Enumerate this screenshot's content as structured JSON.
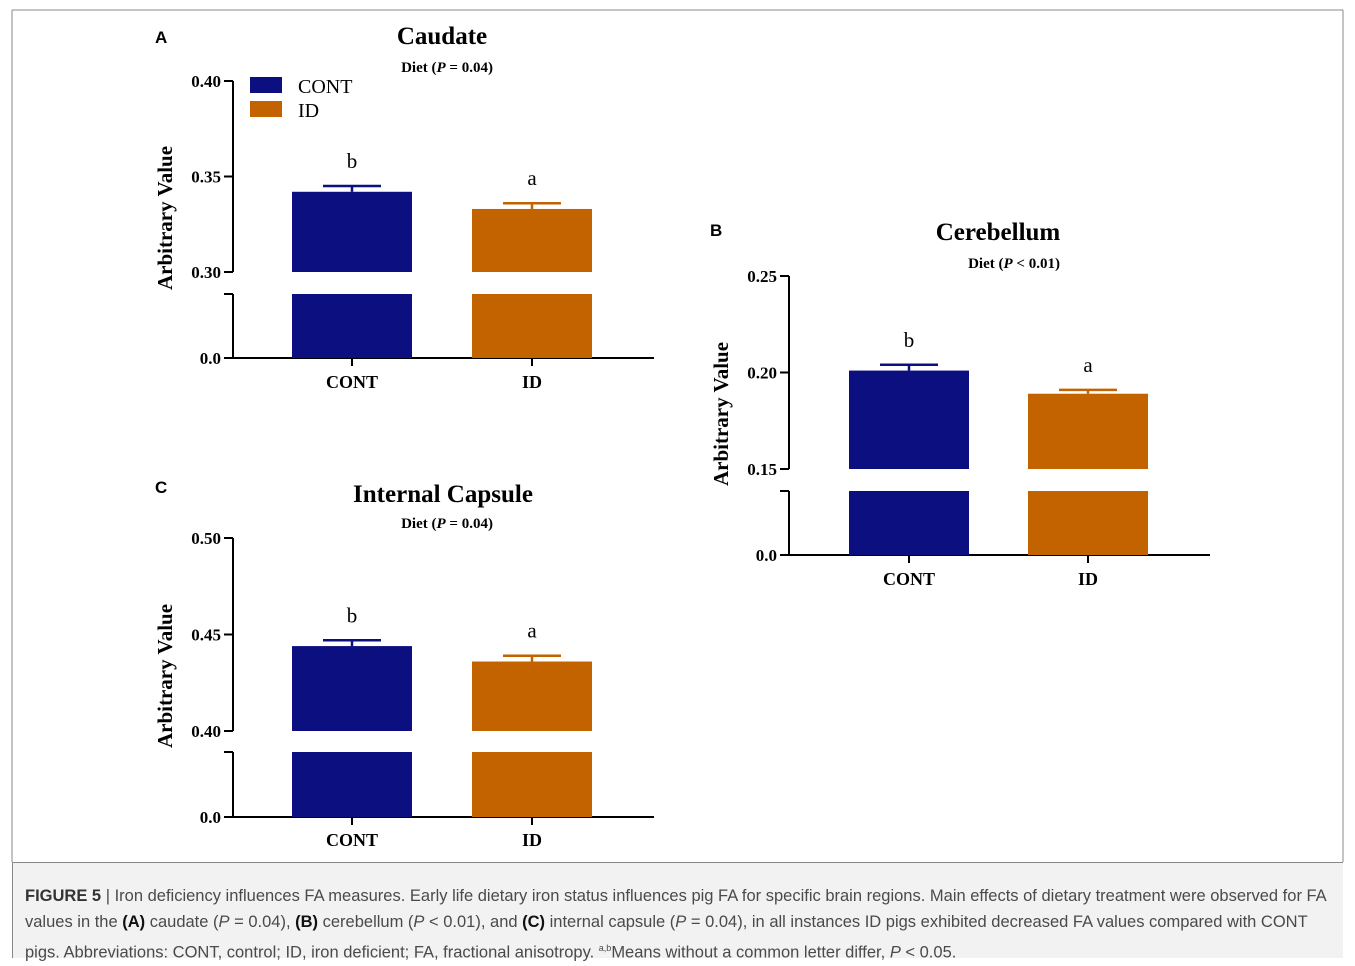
{
  "colors": {
    "CONT": "#0b0f80",
    "ID": "#c26300",
    "axis": "#000000"
  },
  "chart_data": [
    {
      "type": "bar",
      "panel": "A",
      "title": "Caudate",
      "subtitle_prefix": "Diet (",
      "subtitle_p": "P",
      "subtitle_suffix": " = 0.04)",
      "ylabel": "Arbitrary Value",
      "categories": [
        "CONT",
        "ID"
      ],
      "values": [
        0.342,
        0.333
      ],
      "errors": [
        0.003,
        0.003
      ],
      "letters": [
        "b",
        "a"
      ],
      "ylim": [
        0.3,
        0.4
      ],
      "yticks": [
        "0.40",
        "0.35",
        "0.30",
        "0.0"
      ],
      "axis_break": true,
      "legend": [
        "CONT",
        "ID"
      ]
    },
    {
      "type": "bar",
      "panel": "B",
      "title": "Cerebellum",
      "subtitle_prefix": "Diet (",
      "subtitle_p": "P",
      "subtitle_suffix": " < 0.01)",
      "ylabel": "Arbitrary Value",
      "categories": [
        "CONT",
        "ID"
      ],
      "values": [
        0.201,
        0.189
      ],
      "errors": [
        0.003,
        0.002
      ],
      "letters": [
        "b",
        "a"
      ],
      "ylim": [
        0.15,
        0.25
      ],
      "yticks": [
        "0.25",
        "0.20",
        "0.15",
        "0.0"
      ],
      "axis_break": true
    },
    {
      "type": "bar",
      "panel": "C",
      "title": "Internal Capsule",
      "subtitle_prefix": "Diet (",
      "subtitle_p": "P",
      "subtitle_suffix": " = 0.04)",
      "ylabel": "Arbitrary Value",
      "categories": [
        "CONT",
        "ID"
      ],
      "values": [
        0.444,
        0.436
      ],
      "errors": [
        0.003,
        0.003
      ],
      "letters": [
        "b",
        "a"
      ],
      "ylim": [
        0.4,
        0.5
      ],
      "yticks": [
        "0.50",
        "0.45",
        "0.40",
        "0.0"
      ],
      "axis_break": true
    }
  ],
  "caption": {
    "label": "FIGURE 5",
    "sep": " | ",
    "t1": "Iron deficiency influences FA measures. Early life dietary iron status influences pig FA for specific brain regions. Main effects of dietary treatment were observed for FA values in the ",
    "a": "(A)",
    "t2": " caudate (",
    "p1": "P",
    "t3": " = 0.04), ",
    "b": "(B)",
    "t4": " cerebellum (",
    "p2": "P",
    "t5": " < 0.01), and ",
    "c": "(C)",
    "t6": " internal capsule (",
    "p3": "P",
    "t7": " = 0.04), in all instances ID pigs exhibited decreased FA values compared with CONT pigs. Abbreviations: CONT, control; ID, iron deficient; FA, fractional anisotropy. ",
    "sup": "a,b",
    "t8": "Means without a common letter differ, ",
    "p4": "P",
    "t9": " < 0.05."
  }
}
